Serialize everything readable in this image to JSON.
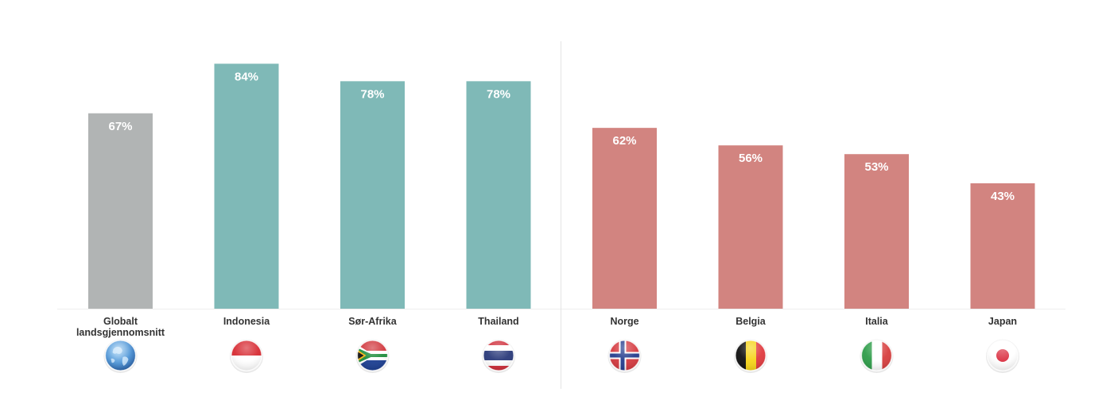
{
  "chart_data": {
    "type": "bar",
    "categories": [
      "Globalt landsgjennomsnitt",
      "Indonesia",
      "Sør-Afrika",
      "Thailand",
      "Norge",
      "Belgia",
      "Italia",
      "Japan"
    ],
    "category_label_lines": [
      [
        "Globalt",
        "landsgjennomsnitt"
      ],
      [
        "Indonesia"
      ],
      [
        "Sør-Afrika"
      ],
      [
        "Thailand"
      ],
      [
        "Norge"
      ],
      [
        "Belgia"
      ],
      [
        "Italia"
      ],
      [
        "Japan"
      ]
    ],
    "values": [
      67,
      84,
      78,
      78,
      62,
      56,
      53,
      43
    ],
    "value_labels": [
      "67%",
      "84%",
      "78%",
      "78%",
      "62%",
      "56%",
      "53%",
      "43%"
    ],
    "groups": [
      "global",
      "high",
      "high",
      "high",
      "low",
      "low",
      "low",
      "low"
    ],
    "icons": [
      "globe-icon",
      "indonesia-flag-icon",
      "south-africa-flag-icon",
      "thailand-flag-icon",
      "norway-flag-icon",
      "belgium-flag-icon",
      "italy-flag-icon",
      "japan-flag-icon"
    ],
    "colors": {
      "global": "#b1b4b4",
      "high": "#7fb9b7",
      "low": "#d28480",
      "label": "#ffffff",
      "category_text": "#333333",
      "divider": "#e4e4e4"
    },
    "ylim": [
      0,
      100
    ],
    "grid": false,
    "legend": "none",
    "divider_after_category": 4
  }
}
